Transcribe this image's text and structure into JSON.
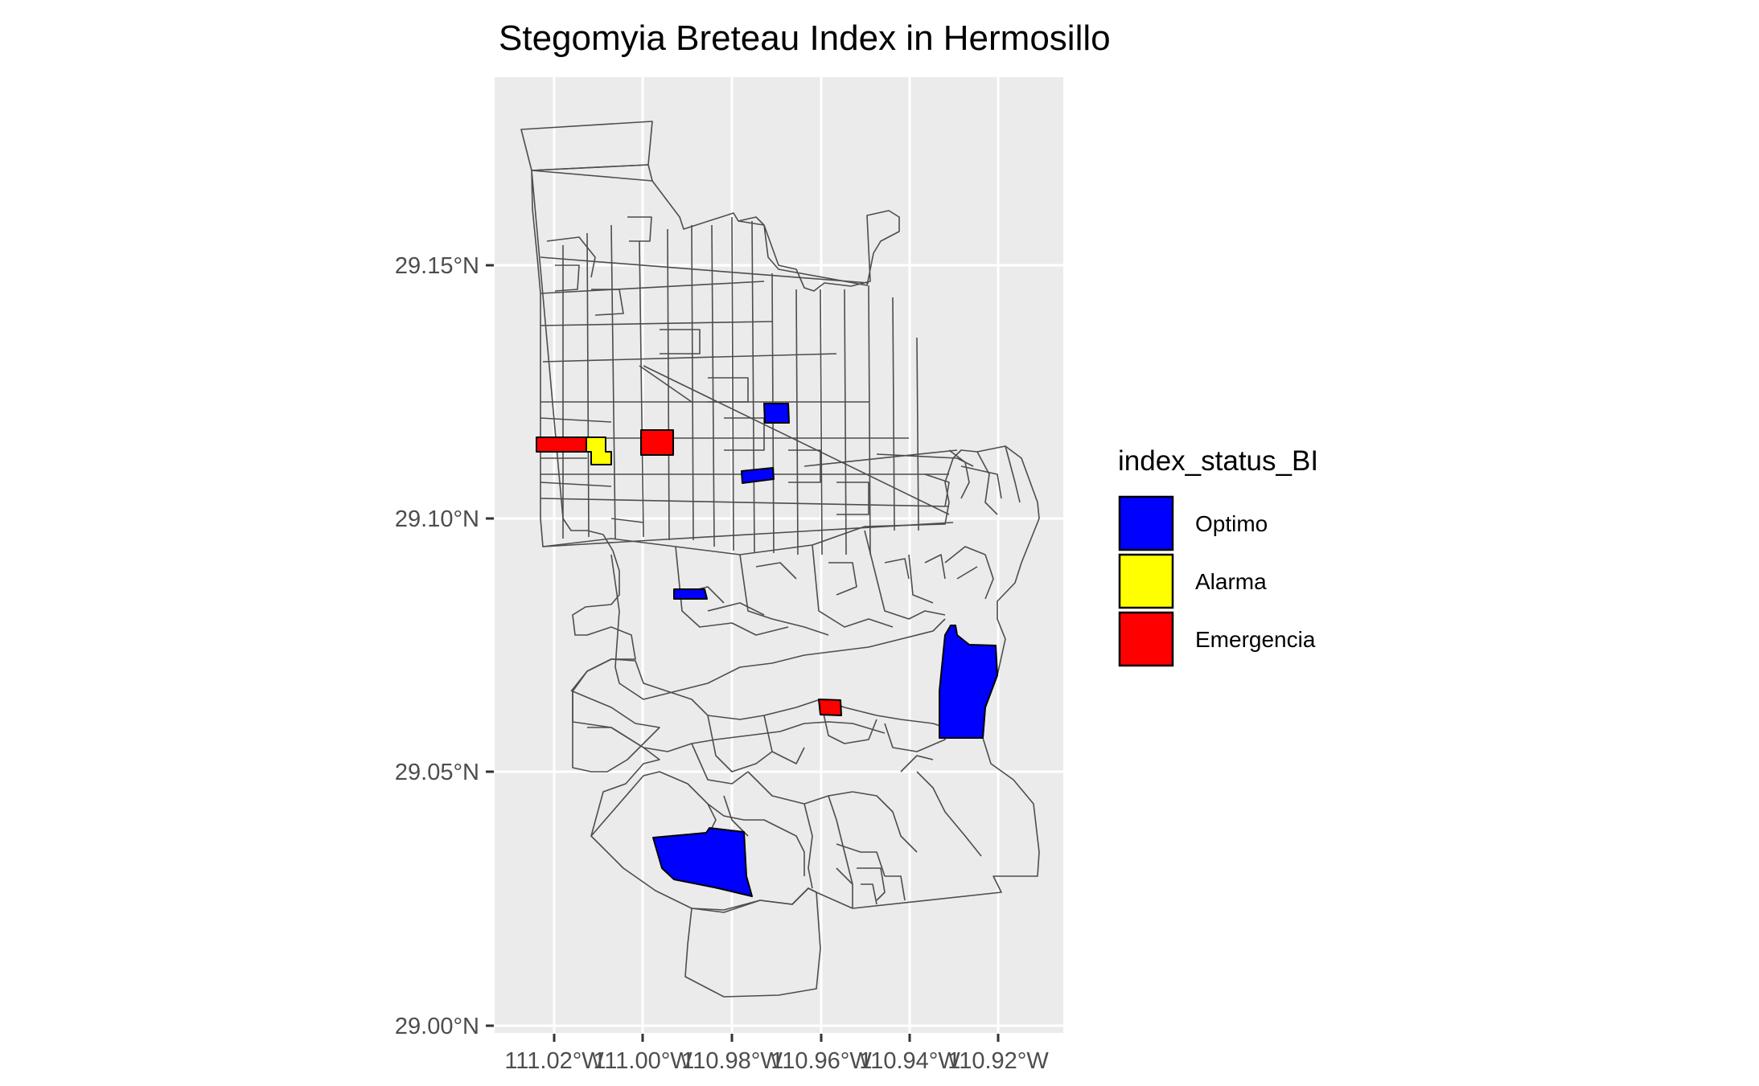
{
  "title": "Stegomyia Breteau Index in Hermosillo",
  "axes": {
    "x_ticks": [
      "111.02°W",
      "111.00°W",
      "110.98°W",
      "110.96°W",
      "110.94°W",
      "110.92°W"
    ],
    "y_ticks": [
      "29.15°N",
      "29.10°N",
      "29.05°N",
      "29.00°N"
    ]
  },
  "legend": {
    "title": "index_status_BI",
    "items": [
      {
        "label": "Optimo",
        "color": "#0000ff"
      },
      {
        "label": "Alarma",
        "color": "#ffff00"
      },
      {
        "label": "Emergencia",
        "color": "#ff0000"
      }
    ]
  },
  "colors": {
    "panel_background": "#ebebeb",
    "grid": "#ffffff",
    "outline": "#4d4d4d"
  }
}
